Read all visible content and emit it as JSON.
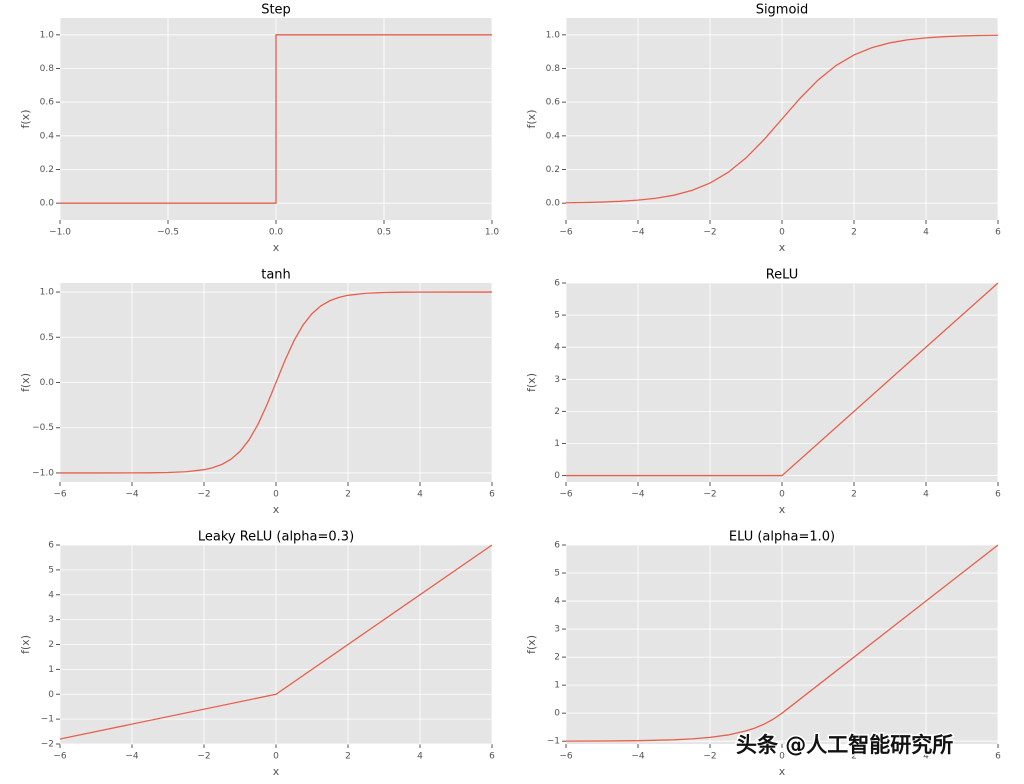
{
  "chart_data": [
    {
      "type": "line",
      "title": "Step",
      "xlabel": "x",
      "ylabel": "f(x)",
      "color": "#e8604c",
      "grid": true,
      "x": [
        -1,
        0,
        0,
        1
      ],
      "values": [
        0,
        0,
        1,
        1
      ],
      "xlim": [
        -1,
        1
      ],
      "ylim": [
        -0.1,
        1.1
      ],
      "xticks": [
        {
          "value": -1,
          "label": "−1.0"
        },
        {
          "value": -0.5,
          "label": "−0.5"
        },
        {
          "value": 0,
          "label": "0.0"
        },
        {
          "value": 0.5,
          "label": "0.5"
        },
        {
          "value": 1,
          "label": "1.0"
        }
      ],
      "yticks": [
        {
          "value": 0,
          "label": "0.0"
        },
        0.2,
        0.4,
        0.6,
        0.8,
        {
          "value": 1,
          "label": "1.0"
        }
      ]
    },
    {
      "type": "line",
      "title": "Sigmoid",
      "xlabel": "x",
      "ylabel": "f(x)",
      "color": "#e8604c",
      "grid": true,
      "x": [
        -6,
        -5.5,
        -5,
        -4.5,
        -4,
        -3.5,
        -3,
        -2.5,
        -2,
        -1.5,
        -1,
        -0.5,
        0,
        0.5,
        1,
        1.5,
        2,
        2.5,
        3,
        3.5,
        4,
        4.5,
        5,
        5.5,
        6
      ],
      "values": [
        0.0025,
        0.0041,
        0.0067,
        0.011,
        0.018,
        0.0293,
        0.0474,
        0.0759,
        0.1192,
        0.1824,
        0.2689,
        0.3775,
        0.5,
        0.6225,
        0.7311,
        0.8176,
        0.8808,
        0.9241,
        0.9526,
        0.9707,
        0.982,
        0.989,
        0.9933,
        0.9959,
        0.9975
      ],
      "xlim": [
        -6,
        6
      ],
      "ylim": [
        -0.1,
        1.1
      ],
      "xticks": [
        {
          "value": -6,
          "label": "−6"
        },
        {
          "value": -4,
          "label": "−4"
        },
        {
          "value": -2,
          "label": "−2"
        },
        0,
        2,
        4,
        6
      ],
      "yticks": [
        {
          "value": 0,
          "label": "0.0"
        },
        0.2,
        0.4,
        0.6,
        0.8,
        {
          "value": 1,
          "label": "1.0"
        }
      ]
    },
    {
      "type": "line",
      "title": "tanh",
      "xlabel": "x",
      "ylabel": "f(x)",
      "color": "#e8604c",
      "grid": true,
      "x": [
        -6,
        -5,
        -4,
        -3.5,
        -3,
        -2.5,
        -2,
        -1.75,
        -1.5,
        -1.25,
        -1,
        -0.75,
        -0.5,
        -0.25,
        0,
        0.25,
        0.5,
        0.75,
        1,
        1.25,
        1.5,
        1.75,
        2,
        2.5,
        3,
        3.5,
        4,
        5,
        6
      ],
      "values": [
        -1,
        -0.9999,
        -0.9993,
        -0.9982,
        -0.9951,
        -0.9866,
        -0.964,
        -0.941,
        -0.9051,
        -0.848,
        -0.7616,
        -0.6351,
        -0.4621,
        -0.2449,
        0,
        0.2449,
        0.4621,
        0.6351,
        0.7616,
        0.848,
        0.9051,
        0.941,
        0.964,
        0.9866,
        0.9951,
        0.9982,
        0.9993,
        0.9999,
        1
      ],
      "xlim": [
        -6,
        6
      ],
      "ylim": [
        -1.1,
        1.1
      ],
      "xticks": [
        {
          "value": -6,
          "label": "−6"
        },
        {
          "value": -4,
          "label": "−4"
        },
        {
          "value": -2,
          "label": "−2"
        },
        0,
        2,
        4,
        6
      ],
      "yticks": [
        {
          "value": -1,
          "label": "−1.0"
        },
        {
          "value": -0.5,
          "label": "−0.5"
        },
        {
          "value": 0,
          "label": "0.0"
        },
        0.5,
        {
          "value": 1,
          "label": "1.0"
        }
      ]
    },
    {
      "type": "line",
      "title": "ReLU",
      "xlabel": "x",
      "ylabel": "f(x)",
      "color": "#e8604c",
      "grid": true,
      "x": [
        -6,
        0,
        6
      ],
      "values": [
        0,
        0,
        6
      ],
      "xlim": [
        -6,
        6
      ],
      "ylim": [
        -0.2,
        6
      ],
      "xticks": [
        {
          "value": -6,
          "label": "−6"
        },
        {
          "value": -4,
          "label": "−4"
        },
        {
          "value": -2,
          "label": "−2"
        },
        0,
        2,
        4,
        6
      ],
      "yticks": [
        0,
        1,
        2,
        3,
        4,
        5,
        6
      ]
    },
    {
      "type": "line",
      "title": "Leaky ReLU (alpha=0.3)",
      "xlabel": "x",
      "ylabel": "f(x)",
      "color": "#e8604c",
      "grid": true,
      "x": [
        -6,
        0,
        6
      ],
      "values": [
        -1.8,
        0,
        6
      ],
      "xlim": [
        -6,
        6
      ],
      "ylim": [
        -2,
        6
      ],
      "xticks": [
        {
          "value": -6,
          "label": "−6"
        },
        {
          "value": -4,
          "label": "−4"
        },
        {
          "value": -2,
          "label": "−2"
        },
        0,
        2,
        4,
        6
      ],
      "yticks": [
        {
          "value": -2,
          "label": "−2"
        },
        {
          "value": -1,
          "label": "−1"
        },
        0,
        1,
        2,
        3,
        4,
        5,
        6
      ]
    },
    {
      "type": "line",
      "title": "ELU (alpha=1.0)",
      "xlabel": "x",
      "ylabel": "f(x)",
      "color": "#e8604c",
      "grid": true,
      "x": [
        -6,
        -5,
        -4,
        -3,
        -2.5,
        -2,
        -1.5,
        -1,
        -0.75,
        -0.5,
        -0.25,
        0,
        6
      ],
      "values": [
        -0.998,
        -0.993,
        -0.982,
        -0.95,
        -0.918,
        -0.865,
        -0.777,
        -0.632,
        -0.528,
        -0.393,
        -0.221,
        0,
        6
      ],
      "xlim": [
        -6,
        6
      ],
      "ylim": [
        -1.1,
        6
      ],
      "xticks": [
        {
          "value": -6,
          "label": "−6"
        },
        {
          "value": -4,
          "label": "−4"
        },
        {
          "value": -2,
          "label": "−2"
        },
        0,
        2,
        4,
        6
      ],
      "yticks": [
        {
          "value": -1,
          "label": "−1"
        },
        0,
        1,
        2,
        3,
        4,
        5,
        6
      ]
    }
  ],
  "watermark": "头条 @人工智能研究所"
}
